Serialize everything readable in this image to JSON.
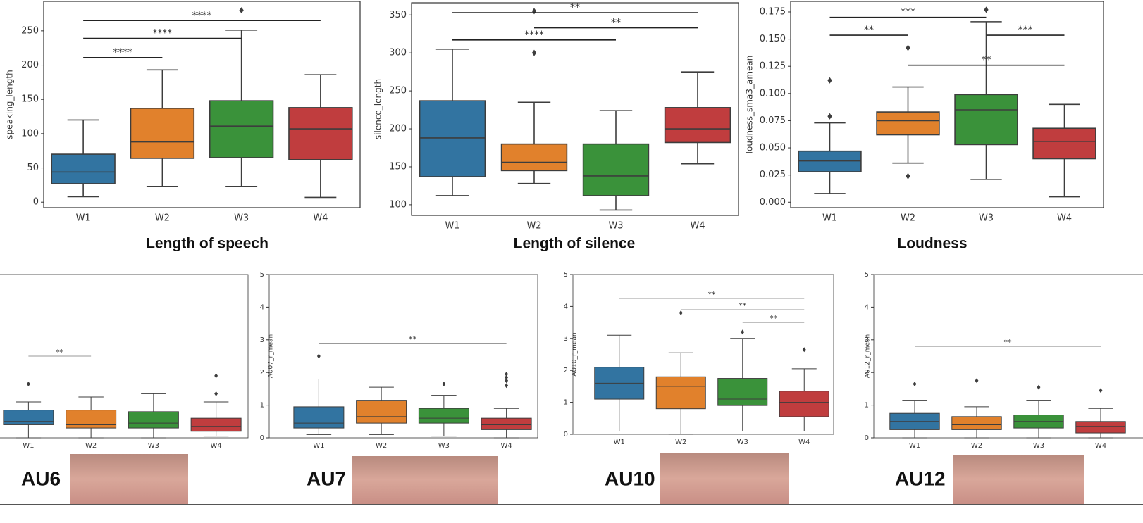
{
  "chart_data": [
    {
      "type": "box",
      "title": "Length of speech",
      "ylabel": "speaking_length",
      "categories": [
        "W1",
        "W2",
        "W3",
        "W4"
      ],
      "colors": [
        "#3274a1",
        "#e1812c",
        "#3a923a",
        "#c03d3e"
      ],
      "ylim": [
        -8,
        293
      ],
      "yticks": [
        0,
        50,
        100,
        150,
        200,
        250
      ],
      "boxes": [
        {
          "whislo": 8,
          "q1": 27,
          "med": 44,
          "q3": 70,
          "whishi": 120,
          "fliers": []
        },
        {
          "whislo": 23,
          "q1": 64,
          "med": 88,
          "q3": 137,
          "whishi": 193,
          "fliers": []
        },
        {
          "whislo": 23,
          "q1": 65,
          "med": 111,
          "q3": 148,
          "whishi": 251,
          "fliers": [
            280
          ]
        },
        {
          "whislo": 7,
          "q1": 62,
          "med": 107,
          "q3": 138,
          "whishi": 186,
          "fliers": []
        }
      ],
      "annotations": [
        {
          "x": [
            0,
            1
          ],
          "y": 211,
          "label": "****"
        },
        {
          "x": [
            0,
            2
          ],
          "y": 239,
          "label": "****"
        },
        {
          "x": [
            0,
            3
          ],
          "y": 265,
          "label": "****"
        }
      ]
    },
    {
      "type": "box",
      "title": "Length of silence",
      "ylabel": "silence_length",
      "categories": [
        "W1",
        "W2",
        "W3",
        "W4"
      ],
      "colors": [
        "#3274a1",
        "#e1812c",
        "#3a923a",
        "#c03d3e"
      ],
      "ylim": [
        86,
        366
      ],
      "yticks": [
        100,
        150,
        200,
        250,
        300,
        350
      ],
      "boxes": [
        {
          "whislo": 112,
          "q1": 137,
          "med": 188,
          "q3": 237,
          "whishi": 305,
          "fliers": []
        },
        {
          "whislo": 128,
          "q1": 145,
          "med": 156,
          "q3": 180,
          "whishi": 235,
          "fliers": [
            300,
            355
          ]
        },
        {
          "whislo": 93,
          "q1": 112,
          "med": 138,
          "q3": 180,
          "whishi": 224,
          "fliers": []
        },
        {
          "whislo": 154,
          "q1": 182,
          "med": 200,
          "q3": 228,
          "whishi": 275,
          "fliers": []
        }
      ],
      "annotations": [
        {
          "x": [
            0,
            2
          ],
          "y": 317,
          "label": "****"
        },
        {
          "x": [
            1,
            3
          ],
          "y": 333,
          "label": "**"
        },
        {
          "x": [
            0,
            3
          ],
          "y": 353,
          "label": "**"
        }
      ]
    },
    {
      "type": "box",
      "title": "Loudness",
      "ylabel": "loudness_sma3_amean",
      "categories": [
        "W1",
        "W2",
        "W3",
        "W4"
      ],
      "colors": [
        "#3274a1",
        "#e1812c",
        "#3a923a",
        "#c03d3e"
      ],
      "ylim": [
        -0.005,
        0.1847
      ],
      "yticks": [
        {
          "value": 0,
          "label": "0.000"
        },
        {
          "value": 0.025,
          "label": "0.025"
        },
        {
          "value": 0.05,
          "label": "0.050"
        },
        {
          "value": 0.075,
          "label": "0.075"
        },
        {
          "value": 0.1,
          "label": "0.100"
        },
        {
          "value": 0.125,
          "label": "0.125"
        },
        {
          "value": 0.15,
          "label": "0.150"
        },
        {
          "value": 0.175,
          "label": "0.175"
        }
      ],
      "boxes": [
        {
          "whislo": 0.008,
          "q1": 0.028,
          "med": 0.038,
          "q3": 0.047,
          "whishi": 0.073,
          "fliers": [
            0.079,
            0.112
          ]
        },
        {
          "whislo": 0.036,
          "q1": 0.062,
          "med": 0.075,
          "q3": 0.083,
          "whishi": 0.106,
          "fliers": [
            0.024,
            0.142
          ]
        },
        {
          "whislo": 0.021,
          "q1": 0.053,
          "med": 0.085,
          "q3": 0.099,
          "whishi": 0.166,
          "fliers": [
            0.177
          ]
        },
        {
          "whislo": 0.005,
          "q1": 0.04,
          "med": 0.056,
          "q3": 0.068,
          "whishi": 0.09,
          "fliers": []
        }
      ],
      "annotations": [
        {
          "x": [
            0,
            1
          ],
          "y": 0.1536,
          "label": "**"
        },
        {
          "x": [
            0,
            2
          ],
          "y": 0.17,
          "label": "***"
        },
        {
          "x": [
            2,
            3
          ],
          "y": 0.1536,
          "label": "***"
        },
        {
          "x": [
            1,
            3
          ],
          "y": 0.126,
          "label": "**"
        }
      ]
    },
    {
      "type": "box",
      "title": "AU6",
      "categories": [
        "W1",
        "W2",
        "W3",
        "W4"
      ],
      "colors": [
        "#3274a1",
        "#e1812c",
        "#3a923a",
        "#c03d3e"
      ],
      "ylim": [
        0,
        5
      ],
      "boxes": [
        {
          "whislo": 0,
          "q1": 0.4,
          "med": 0.5,
          "q3": 0.85,
          "whishi": 1.1,
          "fliers": [
            1.65
          ]
        },
        {
          "whislo": 0,
          "q1": 0.3,
          "med": 0.4,
          "q3": 0.85,
          "whishi": 1.25,
          "fliers": []
        },
        {
          "whislo": 0,
          "q1": 0.3,
          "med": 0.45,
          "q3": 0.8,
          "whishi": 1.35,
          "fliers": []
        },
        {
          "whislo": 0.05,
          "q1": 0.2,
          "med": 0.35,
          "q3": 0.6,
          "whishi": 1.1,
          "fliers": [
            1.35,
            1.9
          ]
        }
      ],
      "annotations": [
        {
          "x": [
            0,
            1
          ],
          "y": 2.5,
          "label": "**"
        }
      ]
    },
    {
      "type": "box",
      "title": "AU7",
      "ylabel": "AU07_r_mean",
      "categories": [
        "W1",
        "W2",
        "W3",
        "W4"
      ],
      "colors": [
        "#3274a1",
        "#e1812c",
        "#3a923a",
        "#c03d3e"
      ],
      "ylim": [
        0,
        5
      ],
      "yticks": [
        0,
        1,
        2,
        3,
        4,
        5
      ],
      "boxes": [
        {
          "whislo": 0.1,
          "q1": 0.3,
          "med": 0.45,
          "q3": 0.95,
          "whishi": 1.8,
          "fliers": [
            2.5
          ]
        },
        {
          "whislo": 0.1,
          "q1": 0.45,
          "med": 0.65,
          "q3": 1.15,
          "whishi": 1.55,
          "fliers": []
        },
        {
          "whislo": 0.05,
          "q1": 0.45,
          "med": 0.6,
          "q3": 0.9,
          "whishi": 1.3,
          "fliers": [
            1.65
          ]
        },
        {
          "whislo": 0,
          "q1": 0.25,
          "med": 0.4,
          "q3": 0.6,
          "whishi": 0.9,
          "fliers": [
            1.6,
            1.75,
            1.85,
            1.95
          ]
        }
      ],
      "annotations": [
        {
          "x": [
            0,
            3
          ],
          "y": 2.9,
          "label": "**"
        }
      ]
    },
    {
      "type": "box",
      "title": "AU10",
      "ylabel": "AU10_r_mean",
      "categories": [
        "W1",
        "W2",
        "W3",
        "W4"
      ],
      "colors": [
        "#3274a1",
        "#e1812c",
        "#3a923a",
        "#c03d3e"
      ],
      "ylim": [
        0,
        5
      ],
      "yticks": [
        0,
        1,
        2,
        3,
        4,
        5
      ],
      "boxes": [
        {
          "whislo": 0.1,
          "q1": 1.1,
          "med": 1.6,
          "q3": 2.1,
          "whishi": 3.1,
          "fliers": []
        },
        {
          "whislo": 0,
          "q1": 0.8,
          "med": 1.5,
          "q3": 1.8,
          "whishi": 2.55,
          "fliers": [
            3.8
          ]
        },
        {
          "whislo": 0.1,
          "q1": 0.9,
          "med": 1.1,
          "q3": 1.75,
          "whishi": 3.0,
          "fliers": [
            3.2
          ]
        },
        {
          "whislo": 0.1,
          "q1": 0.55,
          "med": 1.0,
          "q3": 1.35,
          "whishi": 2.05,
          "fliers": [
            2.65
          ]
        }
      ],
      "annotations": [
        {
          "x": [
            0,
            3
          ],
          "y": 4.25,
          "label": "**"
        },
        {
          "x": [
            1,
            3
          ],
          "y": 3.9,
          "label": "**"
        },
        {
          "x": [
            2,
            3
          ],
          "y": 3.5,
          "label": "**"
        }
      ]
    },
    {
      "type": "box",
      "title": "AU12",
      "ylabel": "AU12_r_mean",
      "categories": [
        "W1",
        "W2",
        "W3",
        "W4"
      ],
      "colors": [
        "#3274a1",
        "#e1812c",
        "#3a923a",
        "#c03d3e"
      ],
      "ylim": [
        0,
        5
      ],
      "yticks": [
        0,
        1,
        2,
        3,
        4,
        5
      ],
      "boxes": [
        {
          "whislo": 0,
          "q1": 0.25,
          "med": 0.5,
          "q3": 0.75,
          "whishi": 1.15,
          "fliers": [
            1.65
          ]
        },
        {
          "whislo": 0,
          "q1": 0.25,
          "med": 0.4,
          "q3": 0.65,
          "whishi": 0.95,
          "fliers": [
            1.75
          ]
        },
        {
          "whislo": 0,
          "q1": 0.3,
          "med": 0.5,
          "q3": 0.7,
          "whishi": 1.15,
          "fliers": [
            1.55
          ]
        },
        {
          "whislo": 0,
          "q1": 0.15,
          "med": 0.35,
          "q3": 0.5,
          "whishi": 0.9,
          "fliers": [
            1.45
          ]
        }
      ],
      "annotations": [
        {
          "x": [
            0,
            3
          ],
          "y": 2.8,
          "label": "**"
        }
      ]
    }
  ]
}
